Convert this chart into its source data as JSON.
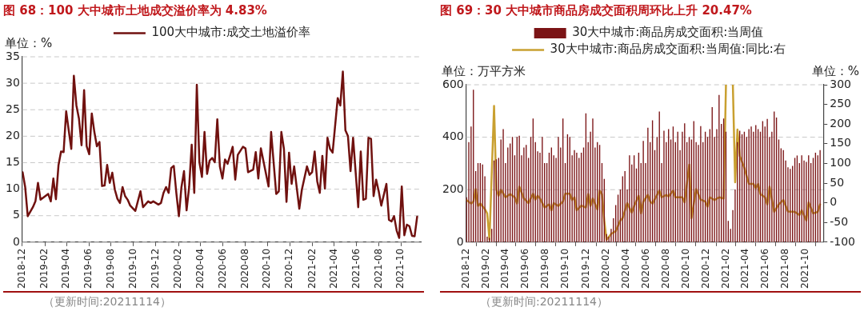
{
  "chart_data": [
    {
      "type": "line",
      "title": "图 68：100 大中城市土地成交溢价率为 4.83%",
      "ylabel": "单位：%",
      "annotations": [
        "（更新时间:20211114）"
      ],
      "legend": "top",
      "grid": "y",
      "marker": "none",
      "x": [
        "2018-12-02",
        "2018-12-09",
        "2018-12-16",
        "2018-12-30",
        "2019-01-06",
        "2019-01-13",
        "2019-01-20",
        "2019-02-10",
        "2019-02-17",
        "2019-02-24",
        "2019-03-03",
        "2019-03-10",
        "2019-03-17",
        "2019-03-24",
        "2019-03-31",
        "2019-04-07",
        "2019-04-14",
        "2019-04-21",
        "2019-04-28",
        "2019-05-05",
        "2019-05-12",
        "2019-05-19",
        "2019-05-26",
        "2019-06-02",
        "2019-06-09",
        "2019-06-16",
        "2019-06-23",
        "2019-06-30",
        "2019-07-07",
        "2019-07-14",
        "2019-07-21",
        "2019-07-28",
        "2019-08-04",
        "2019-08-11",
        "2019-08-18",
        "2019-08-25",
        "2019-09-01",
        "2019-09-08",
        "2019-09-15",
        "2019-09-22",
        "2019-10-06",
        "2019-10-20",
        "2019-10-27",
        "2019-11-10",
        "2019-11-17",
        "2019-11-24",
        "2019-12-08",
        "2019-12-15",
        "2019-12-22",
        "2019-12-29",
        "2020-01-05",
        "2020-01-12",
        "2020-01-19",
        "2020-01-26",
        "2020-02-02",
        "2020-02-09",
        "2020-02-16",
        "2020-02-23",
        "2020-03-01",
        "2020-03-08",
        "2020-03-15",
        "2020-03-22",
        "2020-03-29",
        "2020-04-05",
        "2020-04-12",
        "2020-04-19",
        "2020-04-26",
        "2020-05-03",
        "2020-05-10",
        "2020-05-17",
        "2020-05-24",
        "2020-05-31",
        "2020-06-07",
        "2020-06-14",
        "2020-06-28",
        "2020-07-05",
        "2020-07-12",
        "2020-07-26",
        "2020-08-02",
        "2020-08-09",
        "2020-08-23",
        "2020-08-30",
        "2020-09-06",
        "2020-09-13",
        "2020-10-04",
        "2020-10-11",
        "2020-10-25",
        "2020-11-01",
        "2020-11-08",
        "2020-11-15",
        "2020-11-22",
        "2020-11-29",
        "2020-12-06",
        "2020-12-13",
        "2020-12-27",
        "2021-01-03",
        "2021-01-17",
        "2021-01-24",
        "2021-01-31",
        "2021-02-07",
        "2021-02-14",
        "2021-02-21",
        "2021-02-28",
        "2021-03-07",
        "2021-03-14",
        "2021-03-21",
        "2021-03-28",
        "2021-04-11",
        "2021-04-18",
        "2021-04-25",
        "2021-05-02",
        "2021-05-09",
        "2021-05-16",
        "2021-05-23",
        "2021-05-30",
        "2021-06-06",
        "2021-06-13",
        "2021-06-20",
        "2021-06-27",
        "2021-07-04",
        "2021-07-11",
        "2021-07-18",
        "2021-07-25",
        "2021-08-01",
        "2021-08-08",
        "2021-08-22",
        "2021-08-29",
        "2021-09-05",
        "2021-09-12",
        "2021-09-19",
        "2021-09-26",
        "2021-10-03",
        "2021-10-10",
        "2021-10-17",
        "2021-10-24",
        "2021-10-31",
        "2021-11-07",
        "2021-11-14"
      ],
      "series": [
        {
          "name": "100大中城市:成交土地溢价率",
          "color": "#70110f",
          "values": [
            13.2,
            10.4,
            4.9,
            6.6,
            7.7,
            11.2,
            8.0,
            9.1,
            7.7,
            12.0,
            8.1,
            14.5,
            17.1,
            17.0,
            24.7,
            21.1,
            17.6,
            31.4,
            25.8,
            23.3,
            18.3,
            28.7,
            18.1,
            16.6,
            24.3,
            20.8,
            18.1,
            18.9,
            10.6,
            10.7,
            14.6,
            11.2,
            13.1,
            9.9,
            8.2,
            7.4,
            10.4,
            8.7,
            8.0,
            6.9,
            5.9,
            9.6,
            6.6,
            7.7,
            7.4,
            7.7,
            7.1,
            7.4,
            9.3,
            10.4,
            9.3,
            14.0,
            14.4,
            9.3,
            4.9,
            10.4,
            13.4,
            6.0,
            10.4,
            18.4,
            9.3,
            29.7,
            15.1,
            12.3,
            20.8,
            12.9,
            15.4,
            15.9,
            15.1,
            23.2,
            14.3,
            12.0,
            15.6,
            14.8,
            18.0,
            11.8,
            16.5,
            18.0,
            17.7,
            13.2,
            13.7,
            17.0,
            12.0,
            17.7,
            10.5,
            20.8,
            9.1,
            9.6,
            20.8,
            17.6,
            7.6,
            16.9,
            11.0,
            14.3,
            6.3,
            9.9,
            14.3,
            12.7,
            13.2,
            17.1,
            11.5,
            9.3,
            16.3,
            10.1,
            19.7,
            17.6,
            16.9,
            27.2,
            25.8,
            32.2,
            21.1,
            20.0,
            13.4,
            19.7,
            13.2,
            6.6,
            17.1,
            8.0,
            8.2,
            19.7,
            19.5,
            8.7,
            11.8,
            9.6,
            6.9,
            11.0,
            4.2,
            3.9,
            4.9,
            2.2,
            0.8,
            10.5,
            1.3,
            3.3,
            3.0,
            1.2,
            1.1,
            4.8
          ]
        }
      ],
      "xlim": [
        "2018-12-01",
        "2021-11-24"
      ],
      "xticks": [
        "2018-12",
        "2019-02",
        "2019-04",
        "2019-06",
        "2019-08",
        "2019-10",
        "2019-12",
        "2020-02",
        "2020-04",
        "2020-06",
        "2020-08",
        "2020-10",
        "2020-12",
        "2021-02",
        "2021-04",
        "2021-06",
        "2021-08",
        "2021-10"
      ],
      "ylim": [
        0,
        35
      ],
      "yticks": [
        0,
        5,
        10,
        15,
        20,
        25,
        30,
        35
      ]
    },
    {
      "type": "bar",
      "title": "图 69：30 大中城市商品房成交面积周环比上升 20.47%",
      "ylabel": "单位：万平方米",
      "y2label": "单位：%",
      "annotations": [
        "（更新时间:20211114）"
      ],
      "legend": "top",
      "grid": "y",
      "marker": "none",
      "x": [
        "2018-12-02",
        "2018-12-09",
        "2018-12-16",
        "2018-12-23",
        "2018-12-30",
        "2019-01-06",
        "2019-01-13",
        "2019-01-20",
        "2019-01-27",
        "2019-02-03",
        "2019-02-10",
        "2019-02-17",
        "2019-02-24",
        "2019-03-03",
        "2019-03-10",
        "2019-03-17",
        "2019-03-24",
        "2019-03-31",
        "2019-04-07",
        "2019-04-14",
        "2019-04-21",
        "2019-04-28",
        "2019-05-05",
        "2019-05-12",
        "2019-05-19",
        "2019-05-26",
        "2019-06-02",
        "2019-06-09",
        "2019-06-16",
        "2019-06-23",
        "2019-06-30",
        "2019-07-07",
        "2019-07-14",
        "2019-07-21",
        "2019-07-28",
        "2019-08-04",
        "2019-08-11",
        "2019-08-18",
        "2019-08-25",
        "2019-09-01",
        "2019-09-08",
        "2019-09-15",
        "2019-09-22",
        "2019-09-29",
        "2019-10-06",
        "2019-10-13",
        "2019-10-20",
        "2019-10-27",
        "2019-11-03",
        "2019-11-10",
        "2019-11-17",
        "2019-11-24",
        "2019-12-01",
        "2019-12-08",
        "2019-12-15",
        "2019-12-22",
        "2019-12-29",
        "2020-01-05",
        "2020-01-12",
        "2020-01-19",
        "2020-01-26",
        "2020-02-02",
        "2020-02-09",
        "2020-02-16",
        "2020-02-23",
        "2020-03-01",
        "2020-03-08",
        "2020-03-15",
        "2020-03-22",
        "2020-03-29",
        "2020-04-05",
        "2020-04-12",
        "2020-04-19",
        "2020-04-26",
        "2020-05-03",
        "2020-05-10",
        "2020-05-17",
        "2020-05-24",
        "2020-05-31",
        "2020-06-07",
        "2020-06-14",
        "2020-06-21",
        "2020-06-28",
        "2020-07-05",
        "2020-07-12",
        "2020-07-19",
        "2020-07-26",
        "2020-08-02",
        "2020-08-09",
        "2020-08-16",
        "2020-08-23",
        "2020-08-30",
        "2020-09-06",
        "2020-09-13",
        "2020-09-20",
        "2020-09-27",
        "2020-10-04",
        "2020-10-11",
        "2020-10-18",
        "2020-10-25",
        "2020-11-01",
        "2020-11-08",
        "2020-11-15",
        "2020-11-22",
        "2020-11-29",
        "2020-12-06",
        "2020-12-13",
        "2020-12-20",
        "2020-12-27",
        "2021-01-03",
        "2021-01-10",
        "2021-01-17",
        "2021-01-24",
        "2021-01-31",
        "2021-02-07",
        "2021-02-14",
        "2021-02-21",
        "2021-02-28",
        "2021-03-07",
        "2021-03-14",
        "2021-03-21",
        "2021-03-28",
        "2021-04-04",
        "2021-04-11",
        "2021-04-18",
        "2021-04-25",
        "2021-05-02",
        "2021-05-09",
        "2021-05-16",
        "2021-05-23",
        "2021-05-30",
        "2021-06-06",
        "2021-06-13",
        "2021-06-20",
        "2021-06-27",
        "2021-07-04",
        "2021-07-11",
        "2021-07-18",
        "2021-07-25",
        "2021-08-01",
        "2021-08-08",
        "2021-08-15",
        "2021-08-22",
        "2021-08-29",
        "2021-09-05",
        "2021-09-12",
        "2021-09-19",
        "2021-09-26",
        "2021-10-03",
        "2021-10-10",
        "2021-10-17",
        "2021-10-24",
        "2021-10-31",
        "2021-11-07",
        "2021-11-14"
      ],
      "series": [
        {
          "name": "30大中城市:商品房成交面积:当周值",
          "type": "bar",
          "color": "#7b1416",
          "values": [
            170,
            380,
            440,
            580,
            270,
            300,
            300,
            295,
            250,
            20,
            15,
            50,
            310,
            315,
            320,
            390,
            430,
            300,
            360,
            375,
            400,
            330,
            400,
            405,
            330,
            360,
            370,
            320,
            400,
            470,
            380,
            345,
            340,
            400,
            300,
            300,
            340,
            360,
            330,
            320,
            400,
            360,
            470,
            300,
            410,
            400,
            330,
            350,
            340,
            320,
            340,
            360,
            490,
            380,
            420,
            470,
            360,
            380,
            370,
            300,
            240,
            30,
            20,
            50,
            90,
            140,
            180,
            200,
            250,
            270,
            200,
            330,
            295,
            330,
            280,
            340,
            300,
            385,
            300,
            435,
            380,
            463,
            350,
            400,
            497,
            300,
            424,
            380,
            430,
            390,
            440,
            380,
            420,
            350,
            420,
            452,
            380,
            400,
            390,
            460,
            380,
            370,
            441,
            380,
            420,
            400,
            430,
            514,
            400,
            430,
            560,
            450,
            470,
            420,
            80,
            50,
            121,
            200,
            380,
            424,
            410,
            420,
            400,
            430,
            440,
            420,
            445,
            430,
            420,
            460,
            440,
            469,
            400,
            420,
            497,
            474,
            390,
            357,
            350,
            310,
            284,
            278,
            290,
            320,
            329,
            300,
            330,
            310,
            305,
            330,
            300,
            320,
            340,
            330,
            350
          ]
        },
        {
          "name": "30大中城市:商品房成交面积:当周值:同比:右",
          "type": "line",
          "axis": "y2",
          "color": "#c9a030",
          "x": [
            "2018-12-02",
            "2018-12-16",
            "2018-12-23",
            "2018-12-30",
            "2019-01-06",
            "2019-01-13",
            "2019-01-27",
            "2019-02-03",
            "2019-02-10",
            "2019-02-24",
            "2019-03-03",
            "2019-03-10",
            "2019-03-17",
            "2019-03-31",
            "2019-04-14",
            "2019-04-28",
            "2019-05-05",
            "2019-05-12",
            "2019-05-26",
            "2019-06-09",
            "2019-06-23",
            "2019-06-30",
            "2019-07-07",
            "2019-07-14",
            "2019-07-28",
            "2019-08-11",
            "2019-08-18",
            "2019-08-25",
            "2019-09-08",
            "2019-09-22",
            "2019-09-29",
            "2019-10-13",
            "2019-10-20",
            "2019-10-27",
            "2019-11-03",
            "2019-11-17",
            "2019-12-01",
            "2019-12-08",
            "2019-12-15",
            "2019-12-22",
            "2020-01-05",
            "2020-01-12",
            "2020-01-19",
            "2020-01-26",
            "2020-02-02",
            "2020-02-16",
            "2020-03-01",
            "2020-03-15",
            "2020-03-22",
            "2020-04-05",
            "2020-04-19",
            "2020-04-26",
            "2020-05-10",
            "2020-05-17",
            "2020-05-24",
            "2020-06-07",
            "2020-06-14",
            "2020-06-21",
            "2020-07-12",
            "2020-07-19",
            "2020-08-02",
            "2020-08-09",
            "2020-08-23",
            "2020-08-30",
            "2020-09-20",
            "2020-09-27",
            "2020-10-11",
            "2020-10-18",
            "2020-11-01",
            "2020-11-15",
            "2020-11-29",
            "2020-12-06",
            "2020-12-13",
            "2020-12-27",
            "2021-01-10",
            "2021-01-24",
            "2021-01-31",
            "2021-02-07",
            "2021-02-21",
            "2021-02-28",
            "2021-03-07",
            "2021-03-14",
            "2021-03-28",
            "2021-04-11",
            "2021-04-25",
            "2021-05-02",
            "2021-05-09",
            "2021-05-16",
            "2021-05-30",
            "2021-06-06",
            "2021-06-13",
            "2021-06-27",
            "2021-07-11",
            "2021-07-25",
            "2021-08-08",
            "2021-08-29",
            "2021-09-12",
            "2021-09-19",
            "2021-10-03",
            "2021-10-10",
            "2021-10-24",
            "2021-11-07",
            "2021-11-14"
          ],
          "values": [
            7,
            -2,
            3,
            35,
            -8,
            -2,
            -16,
            -27,
            -94,
            246,
            33,
            18,
            33,
            14,
            22,
            14,
            -2,
            41,
            11,
            -1,
            23,
            8,
            18,
            11,
            -12,
            -4,
            -19,
            -1,
            -8,
            3,
            23,
            23,
            7,
            14,
            -19,
            -7,
            -12,
            22,
            -8,
            11,
            -17,
            31,
            22,
            -45,
            -94,
            -79,
            -72,
            -45,
            -39,
            -1,
            -25,
            -8,
            18,
            -27,
            3,
            20,
            3,
            -2,
            31,
            14,
            20,
            16,
            31,
            14,
            14,
            1,
            97,
            -39,
            35,
            8,
            3,
            -10,
            14,
            7,
            14,
            11,
            300,
            null,
            300,
            52,
            186,
            119,
            89,
            48,
            48,
            37,
            48,
            22,
            14,
            -4,
            41,
            -23,
            -4,
            7,
            -22,
            -23,
            -31,
            -19,
            -45,
            1,
            -27,
            -23,
            -4
          ]
        }
      ],
      "xlim": [
        "2018-12-01",
        "2021-11-24"
      ],
      "xticks": [
        "2018-12",
        "2019-02",
        "2019-04",
        "2019-06",
        "2019-08",
        "2019-10",
        "2019-12",
        "2020-02",
        "2020-04",
        "2020-06",
        "2020-08",
        "2020-10",
        "2020-12",
        "2021-02",
        "2021-04",
        "2021-06",
        "2021-08",
        "2021-10"
      ],
      "ylim": [
        0,
        600
      ],
      "yticks": [
        0,
        200,
        400,
        600
      ],
      "y2lim": [
        -100,
        300
      ],
      "y2ticks": [
        -100,
        -50,
        0,
        50,
        100,
        150,
        200,
        250,
        300
      ]
    }
  ]
}
